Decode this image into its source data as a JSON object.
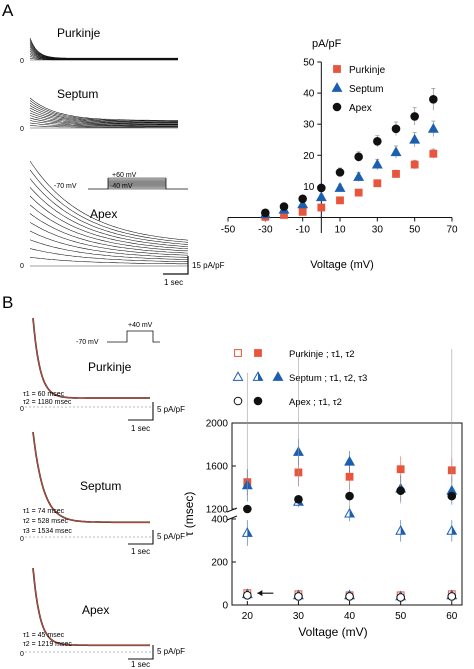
{
  "panel_labels": {
    "a": "A",
    "b": "B"
  },
  "panel_a": {
    "trace_labels": [
      "Purkinje",
      "Septum",
      "Apex"
    ],
    "zero_label": "0",
    "protocol": {
      "top_v": "+60 mV",
      "hold_v": "-70 mV",
      "low_v": "-40 mV"
    },
    "scalebar": {
      "y": "15 pA/pF",
      "x": "1 sec"
    }
  },
  "panel_b": {
    "protocol": {
      "top_v": "+40 mV",
      "hold_v": "-70 mV"
    },
    "traces": [
      {
        "name": "Purkinje",
        "zero": "0",
        "y_scale": "5 pA/pF",
        "x_scale": "1 sec",
        "tau_lines": [
          "τ1 = 60 msec",
          "τ2 = 1180 msec"
        ]
      },
      {
        "name": "Septum",
        "zero": "0",
        "y_scale": "5 pA/pF",
        "x_scale": "1 sec",
        "tau_lines": [
          "τ1 = 74 msec",
          "τ2 = 528 msec",
          "τ3 = 1534 msec"
        ]
      },
      {
        "name": "Apex",
        "zero": "0",
        "y_scale": "5 pA/pF",
        "x_scale": "1 sec",
        "tau_lines": [
          "τ1 = 45 msec",
          "τ2 = 1219 msec"
        ]
      }
    ],
    "legend": [
      {
        "text": "Purkinje ; τ1, τ2"
      },
      {
        "text": "Septum ; τ1, τ2, τ3"
      },
      {
        "text": "Apex ; τ1, τ2"
      }
    ]
  },
  "chart_data": [
    {
      "type": "scatter",
      "title": "",
      "ylabel": "pA/pF",
      "xlabel": "Voltage (mV)",
      "xlim": [
        -50,
        70
      ],
      "ylim": [
        -5,
        50
      ],
      "x_ticks": [
        "-50",
        "-30",
        "-10",
        "10",
        "30",
        "50",
        "70"
      ],
      "y_ticks": [
        "0",
        "10",
        "20",
        "30",
        "40",
        "50"
      ],
      "legend_position": "top-right",
      "series": [
        {
          "name": "Purkinje",
          "color": "#e8553d",
          "marker": "square",
          "x": [
            -30,
            -20,
            -10,
            0,
            10,
            20,
            30,
            40,
            50,
            60
          ],
          "y": [
            0.2,
            0.8,
            1.8,
            3.2,
            5.5,
            8,
            11,
            14,
            17,
            20.5
          ],
          "err": [
            0.3,
            0.4,
            0.5,
            0.6,
            0.8,
            0.8,
            1,
            1.2,
            1.4,
            1.5
          ]
        },
        {
          "name": "Septum",
          "color": "#1c5fb1",
          "marker": "triangle",
          "x": [
            -30,
            -20,
            -10,
            0,
            10,
            20,
            30,
            40,
            50,
            60
          ],
          "y": [
            1,
            2.5,
            4.2,
            6.5,
            9.5,
            13,
            17,
            21,
            25,
            28.5
          ],
          "err": [
            0.5,
            0.7,
            0.9,
            1,
            1.2,
            1.5,
            1.7,
            2,
            2.3,
            2.5
          ]
        },
        {
          "name": "Apex",
          "color": "#111111",
          "marker": "circle",
          "x": [
            -30,
            -20,
            -10,
            0,
            10,
            20,
            30,
            40,
            50,
            60
          ],
          "y": [
            1.5,
            3.5,
            6,
            9.5,
            14.5,
            19.5,
            24.5,
            28.5,
            32.5,
            38
          ],
          "err": [
            0.6,
            0.8,
            1,
            1.2,
            1.4,
            1.6,
            1.8,
            2.2,
            2.8,
            3.5
          ]
        }
      ]
    },
    {
      "type": "scatter",
      "title": "",
      "ylabel": "τ (msec)",
      "xlabel": "Voltage (mV)",
      "xlim": [
        17,
        62
      ],
      "y_axis_break": [
        400,
        1200
      ],
      "ylim_lower": [
        0,
        400
      ],
      "ylim_upper": [
        1200,
        2000
      ],
      "x_ticks": [
        "20",
        "30",
        "40",
        "50",
        "60"
      ],
      "y_ticks": [
        "0",
        "200",
        "400",
        "1200",
        "1600",
        "2000"
      ],
      "annotation": "arrow at Purkinje τ1, 20 mV",
      "series": [
        {
          "name": "Purkinje τ1",
          "color": "#e8553d",
          "marker": "square-open",
          "x": [
            20,
            30,
            40,
            50,
            60
          ],
          "y": [
            55,
            50,
            45,
            45,
            50
          ],
          "err": [
            10,
            8,
            8,
            8,
            10
          ]
        },
        {
          "name": "Purkinje τ2",
          "color": "#e8553d",
          "marker": "square",
          "x": [
            20,
            30,
            40,
            50,
            60
          ],
          "y": [
            1450,
            1540,
            1500,
            1570,
            1560
          ],
          "err": [
            120,
            130,
            120,
            120,
            110
          ]
        },
        {
          "name": "Septum τ1",
          "color": "#1c5fb1",
          "marker": "triangle-open",
          "x": [
            20,
            30,
            40,
            50,
            60
          ],
          "y": [
            50,
            45,
            45,
            40,
            45
          ],
          "err": [
            8,
            8,
            6,
            6,
            8
          ]
        },
        {
          "name": "Septum τ2",
          "color": "#1c5fb1",
          "marker": "triangle-half",
          "x": [
            20,
            30,
            40,
            50,
            60
          ],
          "y": [
            335,
            480,
            425,
            345,
            345
          ],
          "err": [
            60,
            25,
            35,
            50,
            50
          ]
        },
        {
          "name": "Septum τ3",
          "color": "#1c5fb1",
          "marker": "triangle",
          "x": [
            20,
            30,
            40,
            50,
            60
          ],
          "y": [
            1420,
            1730,
            1640,
            1390,
            1370
          ],
          "err": [
            150,
            120,
            100,
            120,
            130
          ]
        },
        {
          "name": "Apex τ1",
          "color": "#111111",
          "marker": "circle-open",
          "x": [
            20,
            30,
            40,
            50,
            60
          ],
          "y": [
            45,
            40,
            40,
            35,
            40
          ],
          "err": [
            8,
            6,
            6,
            6,
            8
          ]
        },
        {
          "name": "Apex τ2",
          "color": "#111111",
          "marker": "circle",
          "x": [
            20,
            30,
            40,
            50,
            60
          ],
          "y": [
            1200,
            1290,
            1320,
            1370,
            1320
          ],
          "err": [
            120,
            120,
            120,
            120,
            130
          ]
        }
      ]
    }
  ]
}
